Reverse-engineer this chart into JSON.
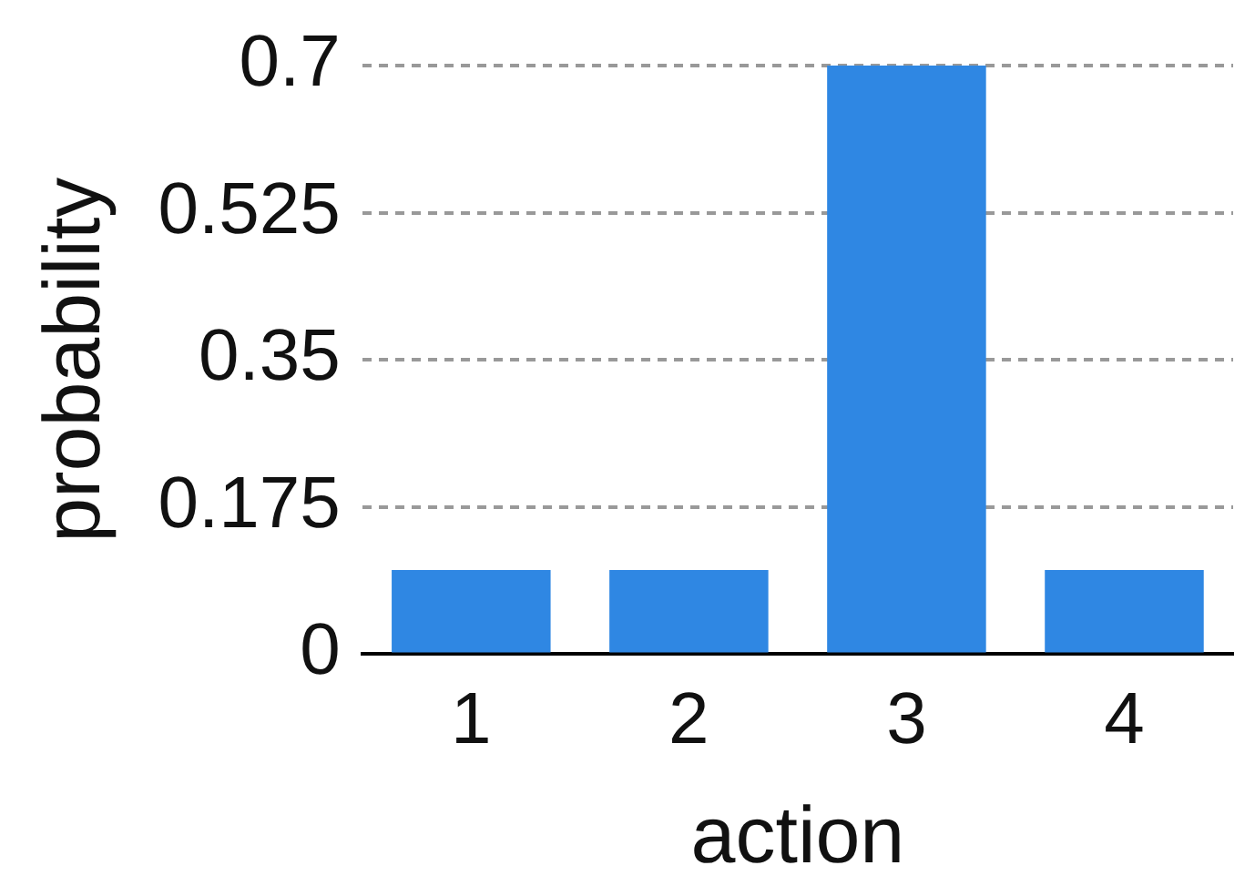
{
  "chart_data": {
    "type": "bar",
    "xlabel": "action",
    "ylabel": "probability",
    "categories": [
      "1",
      "2",
      "3",
      "4"
    ],
    "values": [
      0.1,
      0.1,
      0.7,
      0.1
    ],
    "color": "#2f87e3",
    "ylim": [
      0,
      0.7
    ],
    "yticks": [
      0,
      0.175,
      0.35,
      0.525,
      0.7
    ],
    "grid": "y",
    "legend": false
  }
}
